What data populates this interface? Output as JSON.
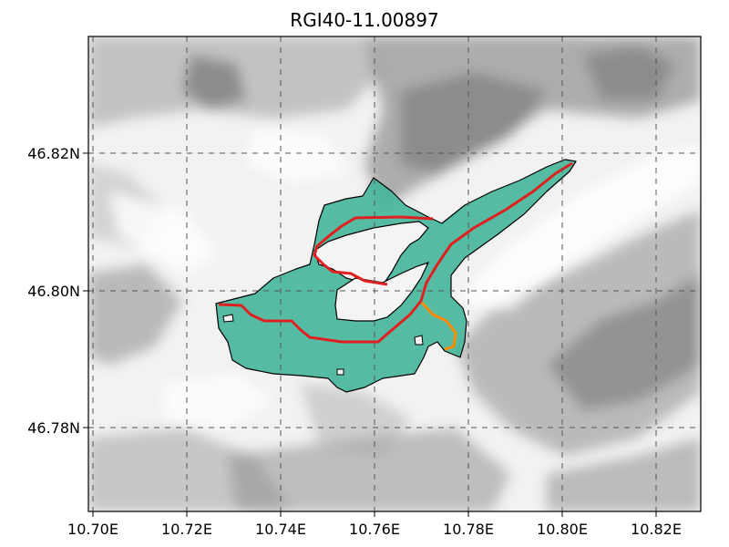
{
  "title": "RGI40-11.00897",
  "axes": {
    "x_ticks": [
      "10.70E",
      "10.72E",
      "10.74E",
      "10.76E",
      "10.78E",
      "10.80E",
      "10.82E"
    ],
    "y_ticks": [
      "46.82N",
      "46.80N",
      "46.78N"
    ]
  },
  "map_data": {
    "type": "glacier-outline-map",
    "extent": {
      "lon": [
        10.698,
        10.829
      ],
      "lat": [
        46.768,
        46.837
      ]
    },
    "gridlines": true,
    "colors": {
      "glacier_fill": "#45b59a",
      "outline": "#000000",
      "main_flowline": "#e02020",
      "tributary_flowline": "#ff8c00",
      "grid": "#555555"
    }
  }
}
